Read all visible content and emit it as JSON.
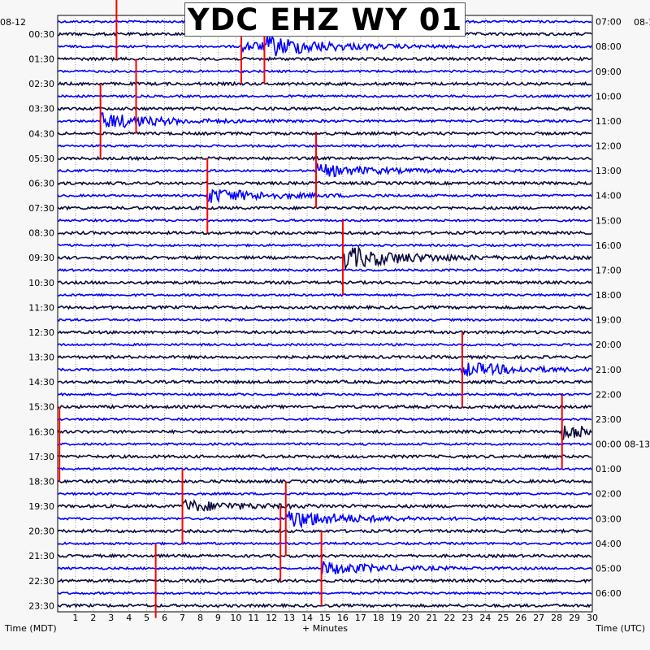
{
  "chart_data": {
    "type": "helicorder",
    "title": "YDC EHZ WY 01",
    "xlabel": "+ Minutes",
    "left_axis_label": "Time (MDT)",
    "right_axis_label": "Time (UTC)",
    "date_left": "08-12",
    "date_right_top": "08-1",
    "x_ticks": [
      "1",
      "2",
      "3",
      "4",
      "5",
      "6",
      "7",
      "8",
      "9",
      "10",
      "11",
      "12",
      "13",
      "14",
      "15",
      "16",
      "17",
      "18",
      "19",
      "20",
      "21",
      "22",
      "23",
      "24",
      "25",
      "26",
      "27",
      "28",
      "29",
      "30"
    ],
    "xlim": [
      0,
      30
    ],
    "rows_per_hour": 2,
    "num_rows": 48,
    "left_labels": [
      "00:30",
      "01:30",
      "02:30",
      "03:30",
      "04:30",
      "05:30",
      "06:30",
      "07:30",
      "08:30",
      "09:30",
      "10:30",
      "11:30",
      "12:30",
      "13:30",
      "14:30",
      "15:30",
      "16:30",
      "17:30",
      "18:30",
      "19:30",
      "20:30",
      "21:30",
      "22:30",
      "23:30"
    ],
    "right_labels": [
      "07:00",
      "08:00",
      "09:00",
      "10:00",
      "11:00",
      "12:00",
      "13:00",
      "14:00",
      "15:00",
      "16:00",
      "17:00",
      "18:00",
      "19:00",
      "20:00",
      "21:00",
      "22:00",
      "23:00",
      "00:00 08-13",
      "01:00",
      "02:00",
      "03:00",
      "04:00",
      "05:00",
      "06:00"
    ],
    "trace_colors": [
      "#0000ff",
      "#0a0a3c"
    ],
    "pick_color": "#ff0000",
    "events": [
      {
        "row": 0,
        "minute": 3.3,
        "type": "pick"
      },
      {
        "row": 2,
        "minute": 10.3,
        "type": "quake",
        "amp": 6
      },
      {
        "row": 2,
        "minute": 11.6,
        "type": "quake",
        "amp": 10
      },
      {
        "row": 6,
        "minute": 4.4,
        "type": "pick"
      },
      {
        "row": 8,
        "minute": 2.4,
        "type": "quake",
        "amp": 10
      },
      {
        "row": 12,
        "minute": 14.5,
        "type": "quake",
        "amp": 8
      },
      {
        "row": 14,
        "minute": 8.4,
        "type": "quake",
        "amp": 9
      },
      {
        "row": 19,
        "minute": 16.0,
        "type": "quake",
        "amp": 14
      },
      {
        "row": 28,
        "minute": 22.7,
        "type": "quake",
        "amp": 9
      },
      {
        "row": 34,
        "minute": 0.1,
        "type": "pick"
      },
      {
        "row": 33,
        "minute": 28.3,
        "type": "quake",
        "amp": 9
      },
      {
        "row": 39,
        "minute": 7.0,
        "type": "quake",
        "amp": 7
      },
      {
        "row": 40,
        "minute": 12.8,
        "type": "quake",
        "amp": 12
      },
      {
        "row": 42,
        "minute": 12.5,
        "type": "pick"
      },
      {
        "row": 44,
        "minute": 14.8,
        "type": "quake",
        "amp": 8
      },
      {
        "row": 45,
        "minute": 5.5,
        "type": "pick"
      }
    ]
  }
}
